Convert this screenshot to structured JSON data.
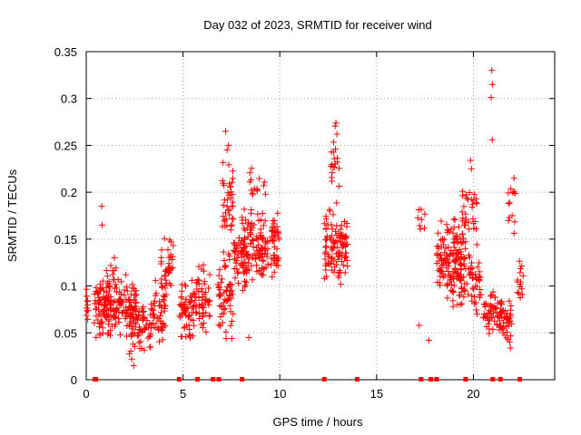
{
  "chart_data": {
    "type": "scatter",
    "title": "Day 032 of 2023, SRMTID for receiver wind",
    "xlabel": "GPS time / hours",
    "ylabel": "SRMTID / TECUs",
    "xlim": [
      0,
      24.2
    ],
    "ylim": [
      0,
      0.35
    ],
    "x_ticks": [
      0,
      5,
      10,
      15,
      20
    ],
    "y_ticks": [
      0,
      0.05,
      0.1,
      0.15,
      0.2,
      0.25,
      0.3,
      0.35
    ],
    "x_tick_labels": [
      "0",
      "5",
      "10",
      "15",
      "20"
    ],
    "y_tick_labels": [
      "0",
      "0.05",
      "0.1",
      "0.15",
      "0.2",
      "0.25",
      "0.3",
      "0.35"
    ],
    "grid": true,
    "marker": "plus",
    "color": "#ff0000",
    "baseline_markers_x": [
      0.45,
      0.5,
      4.8,
      5.75,
      6.55,
      6.85,
      8.05,
      12.3,
      14.0,
      17.3,
      17.8,
      18.1,
      19.6,
      21.0,
      21.4,
      22.4
    ],
    "clusters": [
      {
        "x_range": [
          0.0,
          0.1
        ],
        "y_center": 0.075,
        "y_spread": 0.02,
        "count": 10
      },
      {
        "x_range": [
          0.4,
          1.5
        ],
        "y_center": 0.075,
        "y_spread": 0.025,
        "count": 90
      },
      {
        "x_range": [
          0.8,
          1.6
        ],
        "y_center": 0.1,
        "y_spread": 0.03,
        "count": 30
      },
      {
        "x_range": [
          1.5,
          2.6
        ],
        "y_center": 0.08,
        "y_spread": 0.025,
        "count": 80
      },
      {
        "x_range": [
          2.2,
          3.4
        ],
        "y_center": 0.055,
        "y_spread": 0.025,
        "count": 70
      },
      {
        "x_range": [
          3.4,
          4.1
        ],
        "y_center": 0.075,
        "y_spread": 0.025,
        "count": 50
      },
      {
        "x_range": [
          3.8,
          4.5
        ],
        "y_center": 0.12,
        "y_spread": 0.03,
        "count": 35
      },
      {
        "x_range": [
          4.8,
          5.6
        ],
        "y_center": 0.075,
        "y_spread": 0.025,
        "count": 60
      },
      {
        "x_range": [
          5.6,
          6.4
        ],
        "y_center": 0.085,
        "y_spread": 0.03,
        "count": 55
      },
      {
        "x_range": [
          6.8,
          7.6
        ],
        "y_center": 0.09,
        "y_spread": 0.04,
        "count": 60
      },
      {
        "x_range": [
          7.0,
          7.6
        ],
        "y_center": 0.19,
        "y_spread": 0.04,
        "count": 40
      },
      {
        "x_range": [
          7.6,
          8.3
        ],
        "y_center": 0.125,
        "y_spread": 0.03,
        "count": 45
      },
      {
        "x_range": [
          8.0,
          10.0
        ],
        "y_center": 0.14,
        "y_spread": 0.035,
        "count": 160
      },
      {
        "x_range": [
          8.4,
          9.3
        ],
        "y_center": 0.21,
        "y_spread": 0.02,
        "count": 15
      },
      {
        "x_range": [
          12.3,
          13.5
        ],
        "y_center": 0.14,
        "y_spread": 0.035,
        "count": 110
      },
      {
        "x_range": [
          12.6,
          13.1
        ],
        "y_center": 0.23,
        "y_spread": 0.03,
        "count": 18
      },
      {
        "x_range": [
          17.1,
          17.5
        ],
        "y_center": 0.17,
        "y_spread": 0.015,
        "count": 8
      },
      {
        "x_range": [
          18.1,
          19.6
        ],
        "y_center": 0.135,
        "y_spread": 0.03,
        "count": 110
      },
      {
        "x_range": [
          18.6,
          20.4
        ],
        "y_center": 0.11,
        "y_spread": 0.035,
        "count": 100
      },
      {
        "x_range": [
          19.4,
          20.2
        ],
        "y_center": 0.18,
        "y_spread": 0.03,
        "count": 30
      },
      {
        "x_range": [
          20.5,
          21.5
        ],
        "y_center": 0.07,
        "y_spread": 0.02,
        "count": 60
      },
      {
        "x_range": [
          21.4,
          22.0
        ],
        "y_center": 0.065,
        "y_spread": 0.025,
        "count": 40
      },
      {
        "x_range": [
          21.8,
          22.2
        ],
        "y_center": 0.18,
        "y_spread": 0.03,
        "count": 12
      },
      {
        "x_range": [
          22.2,
          22.6
        ],
        "y_center": 0.105,
        "y_spread": 0.025,
        "count": 15
      }
    ],
    "outliers": [
      {
        "x": 0.8,
        "y": 0.185
      },
      {
        "x": 0.82,
        "y": 0.165
      },
      {
        "x": 7.2,
        "y": 0.265
      },
      {
        "x": 7.35,
        "y": 0.25
      },
      {
        "x": 12.9,
        "y": 0.274
      },
      {
        "x": 12.95,
        "y": 0.262
      },
      {
        "x": 20.95,
        "y": 0.33
      },
      {
        "x": 20.98,
        "y": 0.315
      },
      {
        "x": 20.92,
        "y": 0.301
      },
      {
        "x": 20.97,
        "y": 0.256
      },
      {
        "x": 17.2,
        "y": 0.058
      },
      {
        "x": 17.7,
        "y": 0.042
      },
      {
        "x": 19.85,
        "y": 0.234
      },
      {
        "x": 19.9,
        "y": 0.225
      },
      {
        "x": 22.1,
        "y": 0.215
      },
      {
        "x": 8.4,
        "y": 0.045
      },
      {
        "x": 2.45,
        "y": 0.015
      },
      {
        "x": 2.35,
        "y": 0.022
      }
    ]
  }
}
